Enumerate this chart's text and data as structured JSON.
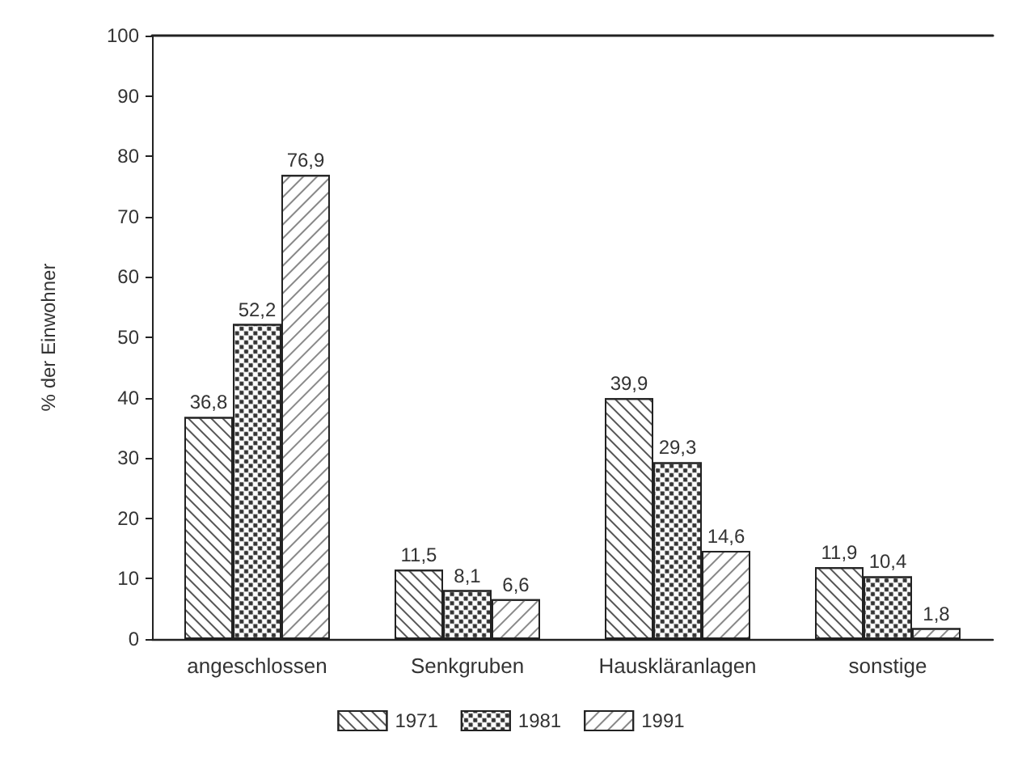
{
  "chart_data": {
    "type": "bar",
    "ylabel": "% der Einwohner",
    "categories": [
      "angeschlossen",
      "Senkgruben",
      "Hauskläranlagen",
      "sonstige"
    ],
    "series": [
      {
        "name": "1971",
        "color": "#ffffff",
        "values": [
          36.8,
          11.5,
          39.9,
          11.9
        ],
        "value_labels": [
          "36,8",
          "11,5",
          "39,9",
          "11,9"
        ]
      },
      {
        "name": "1981",
        "color": "#ffffff",
        "values": [
          52.2,
          8.1,
          29.3,
          10.4
        ],
        "value_labels": [
          "52,2",
          "8,1",
          "29,3",
          "10,4"
        ]
      },
      {
        "name": "1991",
        "color": "#ffffff",
        "values": [
          76.9,
          6.6,
          14.6,
          1.8
        ],
        "value_labels": [
          "76,9",
          "6,6",
          "14,6",
          "1,8"
        ]
      }
    ],
    "ylim": [
      0,
      100
    ],
    "yticks": [
      0,
      10,
      20,
      30,
      40,
      50,
      60,
      70,
      80,
      90,
      100
    ],
    "legend": "bottom"
  }
}
